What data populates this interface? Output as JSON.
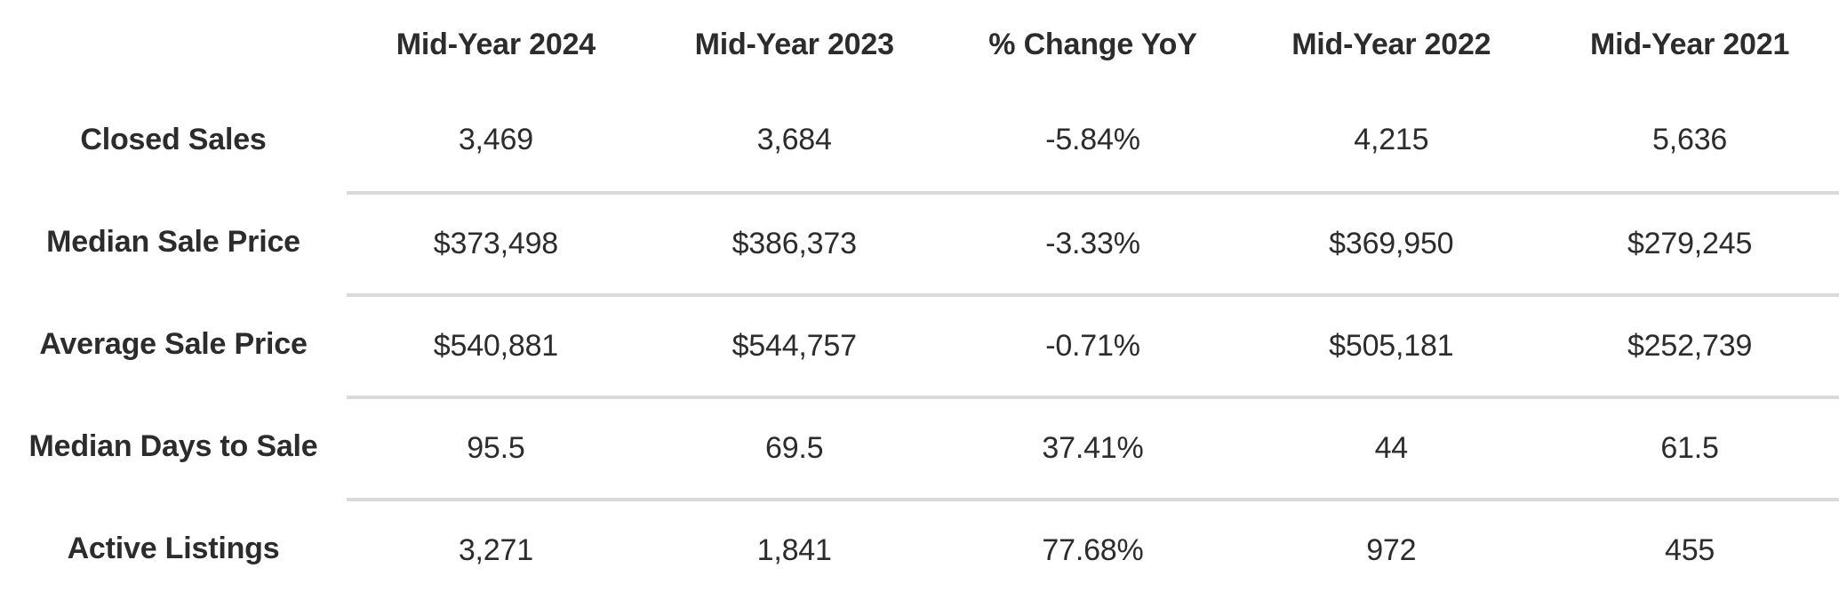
{
  "chart_data": {
    "type": "table",
    "title": "",
    "corner_label": "",
    "columns": [
      "Mid-Year 2024",
      "Mid-Year 2023",
      "% Change YoY",
      "Mid-Year 2022",
      "Mid-Year 2021"
    ],
    "rows": [
      {
        "label": "Closed Sales",
        "values": [
          "3,469",
          "3,684",
          "-5.84%",
          "4,215",
          "5,636"
        ]
      },
      {
        "label": "Median Sale Price",
        "values": [
          "$373,498",
          "$386,373",
          "-3.33%",
          "$369,950",
          "$279,245"
        ]
      },
      {
        "label": "Average Sale Price",
        "values": [
          "$540,881",
          "$544,757",
          "-0.71%",
          "$505,181",
          "$252,739"
        ]
      },
      {
        "label": "Median Days to Sale",
        "values": [
          "95.5",
          "69.5",
          "37.41%",
          "44",
          "61.5"
        ]
      },
      {
        "label": "Active Listings",
        "values": [
          "3,271",
          "1,841",
          "77.68%",
          "972",
          "455"
        ]
      }
    ],
    "styles": {
      "text_color": "#2c2c2c",
      "divider_color": "#dbdbdb",
      "background": "#ffffff"
    },
    "layout": {
      "grid": "off",
      "label_column_align": "center",
      "value_align": "center",
      "dividers": "between data rows, spanning value columns only"
    }
  }
}
